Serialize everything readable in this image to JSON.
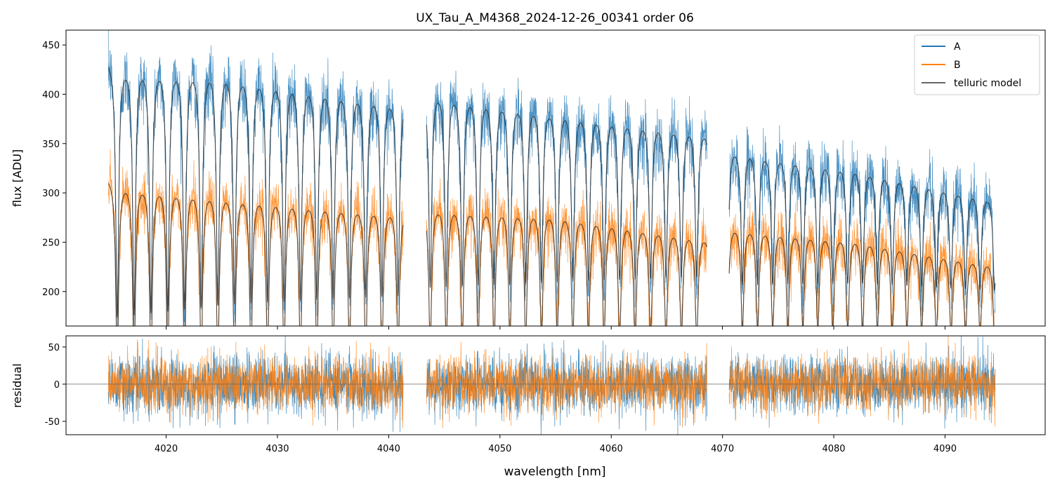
{
  "title": "UX_Tau_A_M4368_2024-12-26_00341  order 06",
  "colors": {
    "A": "#1f77b4",
    "B": "#ff7f0e",
    "model": "#333333",
    "zero": "#666666"
  },
  "chart_data": [
    {
      "panel": "top",
      "type": "line",
      "ylabel": "flux [ADU]",
      "xlim": [
        4011,
        4099
      ],
      "ylim": [
        165,
        465
      ],
      "xticks": [
        4020,
        4030,
        4040,
        4050,
        4060,
        4070,
        4080,
        4090
      ],
      "yticks": [
        200,
        250,
        300,
        350,
        400,
        450
      ],
      "segments": [
        [
          4014.8,
          4041.3
        ],
        [
          4043.4,
          4068.6
        ],
        [
          4070.6,
          4094.5
        ]
      ],
      "telluric_lines": {
        "start_nm": 4015.6,
        "spacing_start_nm": 1.52,
        "spacing_end_nm": 1.3,
        "depth": 0.55,
        "width_nm": 0.16,
        "start_depth_scale": 1.1,
        "end_depth_scale": 0.6
      },
      "series": [
        {
          "name": "A",
          "continuum_knots": [
            [
              4014.8,
              437
            ],
            [
              4025,
              432
            ],
            [
              4041.3,
              402
            ],
            [
              4043.4,
              412
            ],
            [
              4055,
              392
            ],
            [
              4068.6,
              370
            ],
            [
              4070.6,
              352
            ],
            [
              4082,
              332
            ],
            [
              4094.5,
              300
            ]
          ],
          "noise_sigma": 17
        },
        {
          "name": "B",
          "continuum_knots": [
            [
              4014.8,
              317
            ],
            [
              4025,
              305
            ],
            [
              4041.3,
              287
            ],
            [
              4043.4,
              292
            ],
            [
              4055,
              285
            ],
            [
              4068.6,
              260
            ],
            [
              4070.6,
              271
            ],
            [
              4082,
              258
            ],
            [
              4094.5,
              232
            ]
          ],
          "noise_sigma": 15
        }
      ],
      "model_label": "telluric model",
      "legend": {
        "position": "top-right",
        "entries": [
          "A",
          "B",
          "telluric model"
        ]
      }
    },
    {
      "panel": "bottom",
      "type": "line",
      "xlabel": "wavelength [nm]",
      "ylabel": "residual",
      "xlim": [
        4011,
        4099
      ],
      "ylim": [
        -68,
        65
      ],
      "xticks": [
        4020,
        4030,
        4040,
        4050,
        4060,
        4070,
        4080,
        4090
      ],
      "yticks": [
        -50,
        0,
        50
      ],
      "zero_line": 0,
      "series": [
        {
          "name": "A",
          "noise_sigma": 20
        },
        {
          "name": "B",
          "noise_sigma": 18
        }
      ]
    }
  ]
}
